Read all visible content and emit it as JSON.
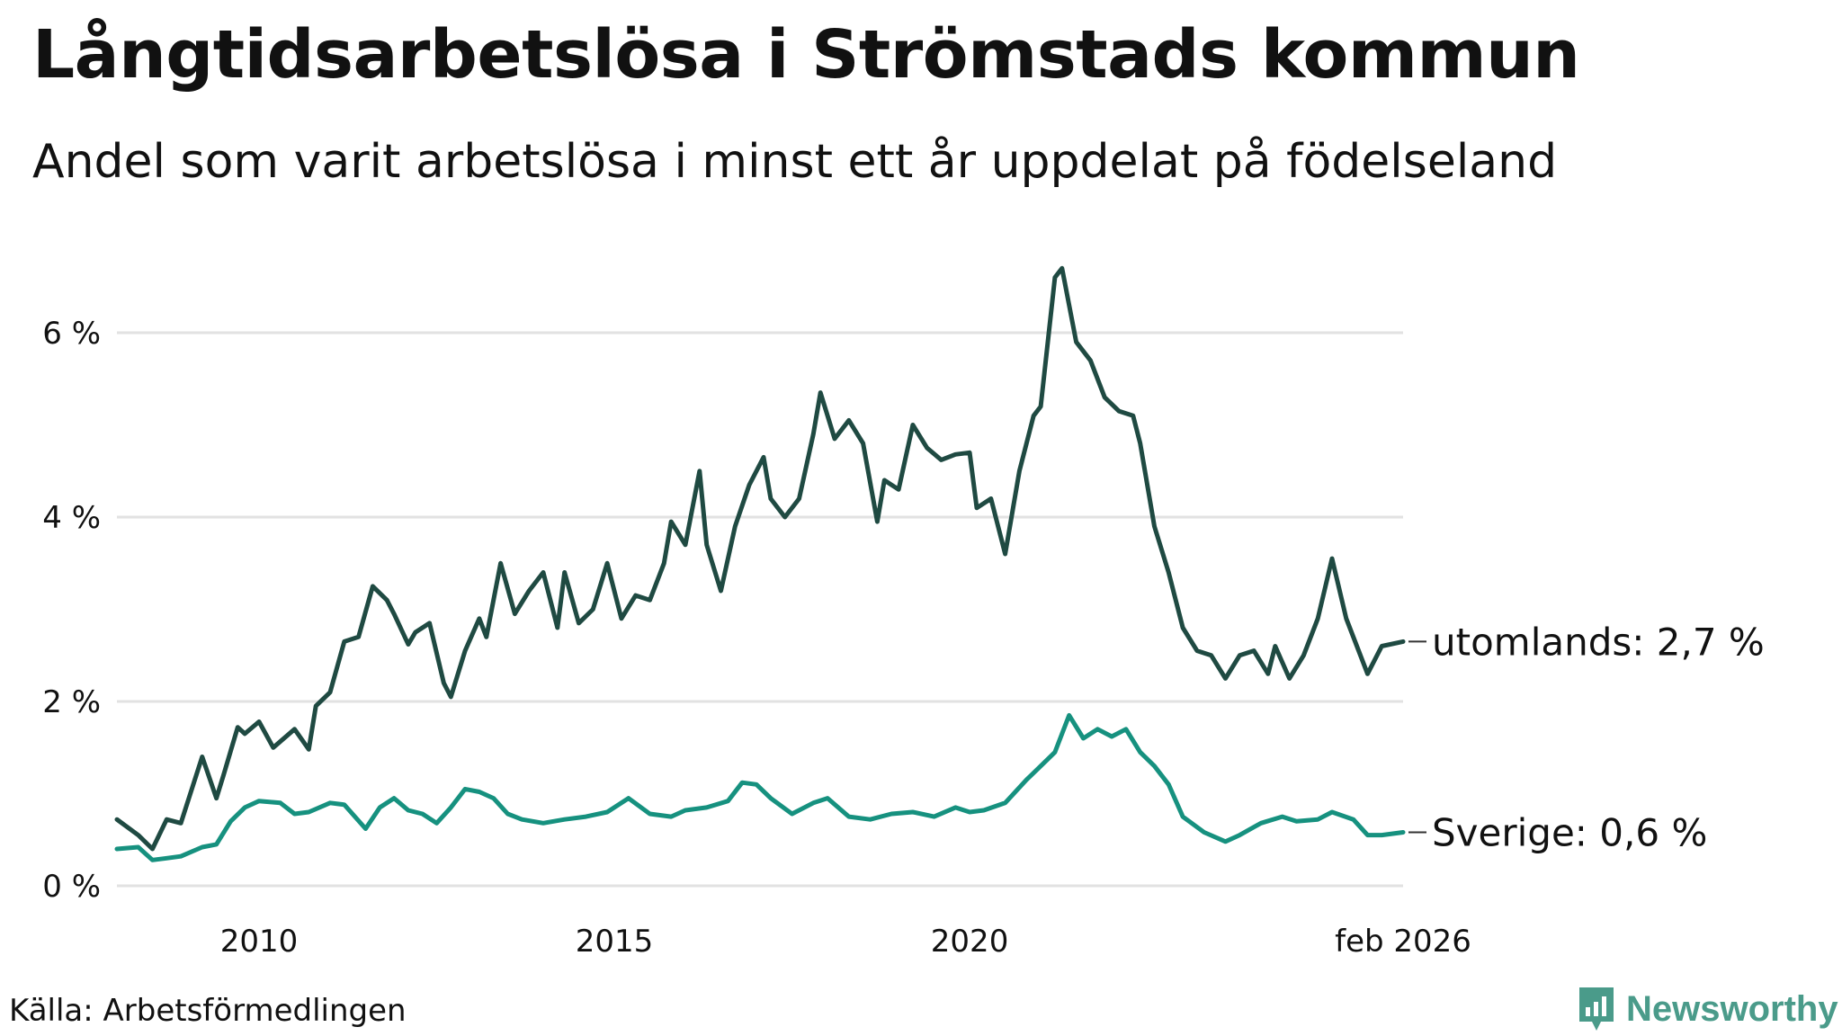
{
  "header": {
    "title": "Långtidsarbetslösa i Strömstads kommun",
    "subtitle": "Andel som varit arbetslösa i minst ett år uppdelat på födelseland"
  },
  "footer": {
    "source": "Källa: Arbetsförmedlingen",
    "logo_text": "Newsworthy"
  },
  "chart_data": {
    "type": "line",
    "title": "Långtidsarbetslösa i Strömstads kommun",
    "subtitle": "Andel som varit arbetslösa i minst ett år uppdelat på födelseland",
    "xlabel": "",
    "ylabel": "",
    "xlim": [
      2008.0,
      2026.1
    ],
    "ylim": [
      0,
      6.9
    ],
    "y_ticks": [
      0,
      2,
      4,
      6
    ],
    "y_tick_labels": [
      "0 %",
      "2 %",
      "4 %",
      "6 %"
    ],
    "x_ticks": [
      2010,
      2015,
      2020,
      2026.1
    ],
    "x_tick_labels": [
      "2010",
      "2015",
      "2020",
      "feb 2026"
    ],
    "grid": true,
    "legend": "direct labels at line ends",
    "colors": {
      "utomlands": "#1f4a42",
      "sverige": "#16917f"
    },
    "series": [
      {
        "name": "utomlands",
        "end_label": "utomlands: 2,7 %",
        "x": [
          2008.0,
          2008.3,
          2008.5,
          2008.7,
          2008.9,
          2009.2,
          2009.4,
          2009.5,
          2009.7,
          2009.8,
          2010.0,
          2010.2,
          2010.5,
          2010.7,
          2010.8,
          2011.0,
          2011.2,
          2011.4,
          2011.6,
          2011.8,
          2011.9,
          2012.1,
          2012.2,
          2012.4,
          2012.6,
          2012.7,
          2012.9,
          2013.1,
          2013.2,
          2013.4,
          2013.6,
          2013.8,
          2014.0,
          2014.2,
          2014.3,
          2014.5,
          2014.7,
          2014.9,
          2015.1,
          2015.3,
          2015.5,
          2015.7,
          2015.8,
          2016.0,
          2016.2,
          2016.3,
          2016.5,
          2016.7,
          2016.9,
          2017.1,
          2017.2,
          2017.4,
          2017.6,
          2017.8,
          2017.9,
          2018.1,
          2018.3,
          2018.5,
          2018.7,
          2018.8,
          2019.0,
          2019.2,
          2019.4,
          2019.6,
          2019.8,
          2020.0,
          2020.1,
          2020.3,
          2020.5,
          2020.7,
          2020.9,
          2021.0,
          2021.2,
          2021.3,
          2021.5,
          2021.7,
          2021.9,
          2022.1,
          2022.3,
          2022.4,
          2022.6,
          2022.8,
          2023.0,
          2023.2,
          2023.4,
          2023.6,
          2023.8,
          2024.0,
          2024.2,
          2024.3,
          2024.5,
          2024.7,
          2024.9,
          2025.1,
          2025.3,
          2025.6,
          2025.8,
          2026.1
        ],
        "values": [
          0.72,
          0.55,
          0.4,
          0.72,
          0.68,
          1.4,
          0.95,
          1.2,
          1.72,
          1.65,
          1.78,
          1.5,
          1.7,
          1.48,
          1.95,
          2.1,
          2.65,
          2.7,
          3.25,
          3.1,
          2.95,
          2.62,
          2.75,
          2.85,
          2.2,
          2.05,
          2.55,
          2.9,
          2.7,
          3.5,
          2.95,
          3.2,
          3.4,
          2.8,
          3.4,
          2.85,
          3.0,
          3.5,
          2.9,
          3.15,
          3.1,
          3.5,
          3.95,
          3.7,
          4.5,
          3.7,
          3.2,
          3.9,
          4.35,
          4.65,
          4.2,
          4.0,
          4.2,
          4.9,
          5.35,
          4.85,
          5.05,
          4.8,
          3.95,
          4.4,
          4.3,
          5.0,
          4.75,
          4.62,
          4.68,
          4.7,
          4.1,
          4.2,
          3.6,
          4.5,
          5.1,
          5.2,
          6.6,
          6.7,
          5.9,
          5.7,
          5.3,
          5.15,
          5.1,
          4.8,
          3.9,
          3.4,
          2.8,
          2.55,
          2.5,
          2.25,
          2.5,
          2.55,
          2.3,
          2.6,
          2.25,
          2.5,
          2.9,
          3.55,
          2.9,
          2.3,
          2.6,
          2.65
        ]
      },
      {
        "name": "sverige",
        "end_label": "Sverige: 0,6 %",
        "x": [
          2008.0,
          2008.3,
          2008.5,
          2008.7,
          2008.9,
          2009.2,
          2009.4,
          2009.6,
          2009.8,
          2010.0,
          2010.3,
          2010.5,
          2010.7,
          2011.0,
          2011.2,
          2011.5,
          2011.7,
          2011.9,
          2012.1,
          2012.3,
          2012.5,
          2012.7,
          2012.9,
          2013.1,
          2013.3,
          2013.5,
          2013.7,
          2014.0,
          2014.3,
          2014.6,
          2014.9,
          2015.2,
          2015.5,
          2015.8,
          2016.0,
          2016.3,
          2016.6,
          2016.8,
          2017.0,
          2017.2,
          2017.5,
          2017.8,
          2018.0,
          2018.3,
          2018.6,
          2018.9,
          2019.2,
          2019.5,
          2019.8,
          2020.0,
          2020.2,
          2020.5,
          2020.8,
          2021.0,
          2021.2,
          2021.4,
          2021.6,
          2021.8,
          2022.0,
          2022.2,
          2022.4,
          2022.6,
          2022.8,
          2023.0,
          2023.3,
          2023.6,
          2023.8,
          2024.1,
          2024.4,
          2024.6,
          2024.9,
          2025.1,
          2025.4,
          2025.6,
          2025.8,
          2026.1
        ],
        "values": [
          0.4,
          0.42,
          0.28,
          0.3,
          0.32,
          0.42,
          0.45,
          0.7,
          0.85,
          0.92,
          0.9,
          0.78,
          0.8,
          0.9,
          0.88,
          0.62,
          0.85,
          0.95,
          0.82,
          0.78,
          0.68,
          0.85,
          1.05,
          1.02,
          0.95,
          0.78,
          0.72,
          0.68,
          0.72,
          0.75,
          0.8,
          0.95,
          0.78,
          0.75,
          0.82,
          0.85,
          0.92,
          1.12,
          1.1,
          0.95,
          0.78,
          0.9,
          0.95,
          0.75,
          0.72,
          0.78,
          0.8,
          0.75,
          0.85,
          0.8,
          0.82,
          0.9,
          1.15,
          1.3,
          1.45,
          1.85,
          1.6,
          1.7,
          1.62,
          1.7,
          1.45,
          1.3,
          1.1,
          0.75,
          0.58,
          0.48,
          0.55,
          0.68,
          0.75,
          0.7,
          0.72,
          0.8,
          0.72,
          0.55,
          0.55,
          0.58
        ]
      }
    ]
  }
}
